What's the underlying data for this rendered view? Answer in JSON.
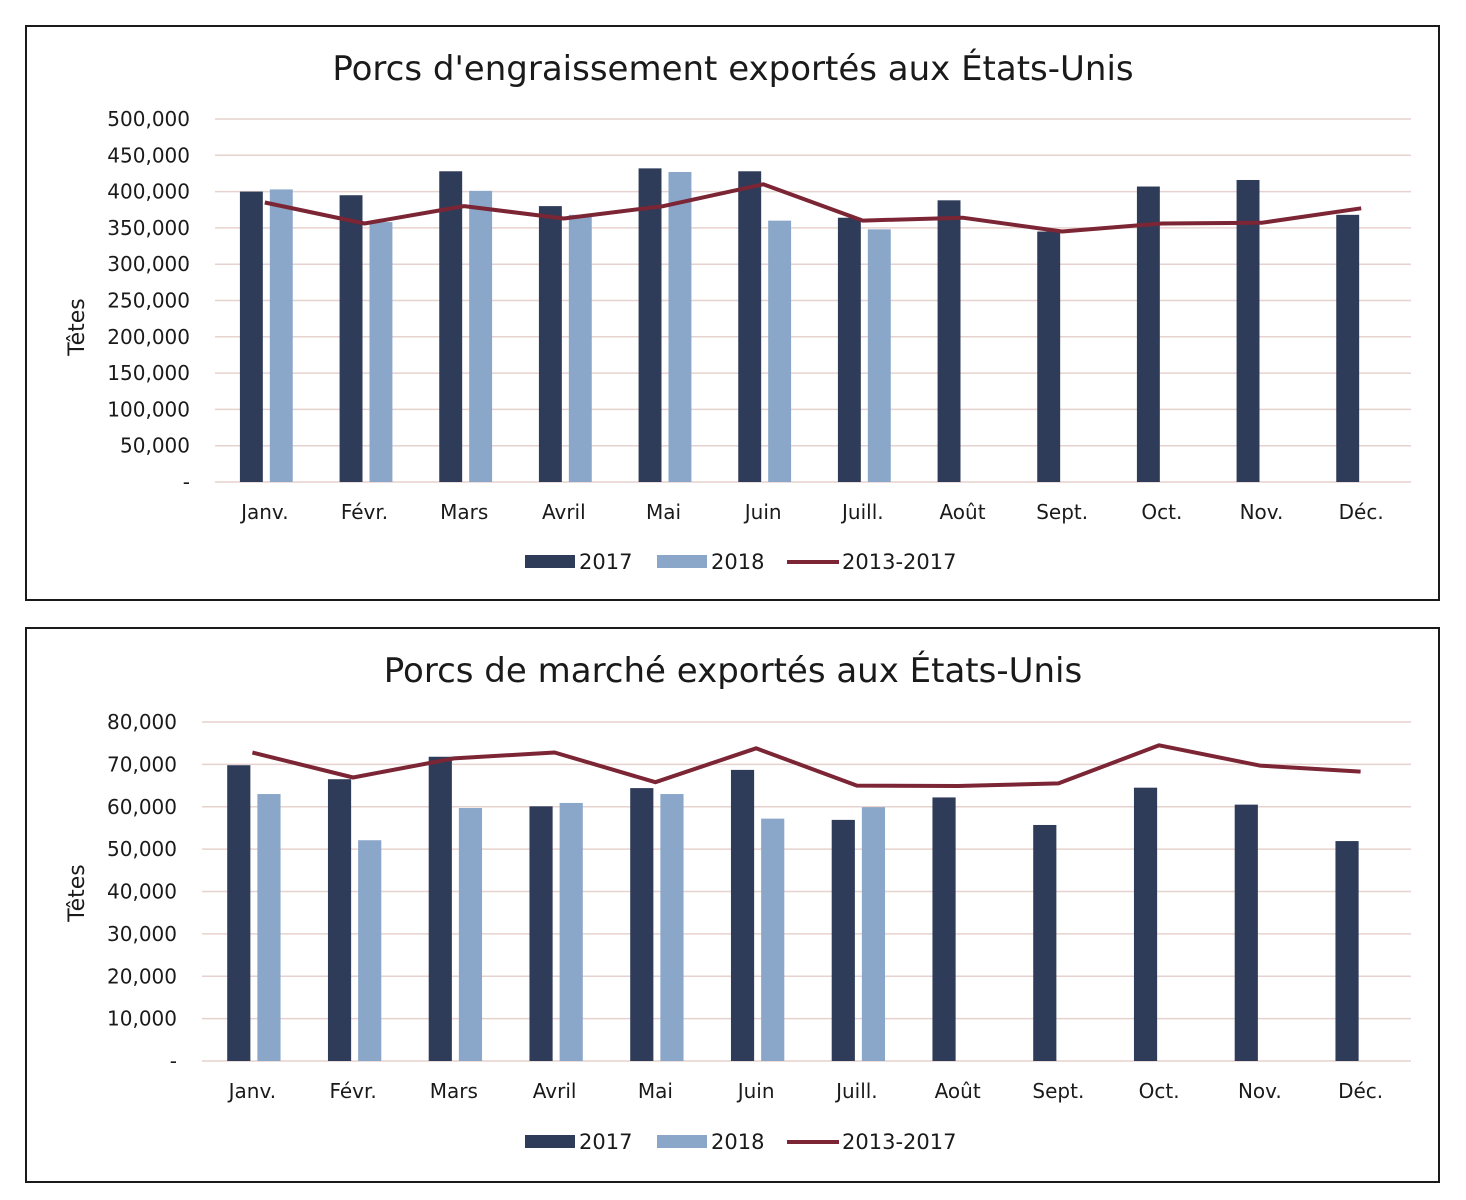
{
  "colors": {
    "s2017": "#2f3c59",
    "s2018": "#8aa7ca",
    "avg": "#7b2535",
    "grid": "#e6d2ce"
  },
  "chart_data": [
    {
      "type": "bar",
      "title": "Porcs d'engraissement exportés aux États-Unis",
      "ylabel": "Têtes",
      "ylim": [
        0,
        500000
      ],
      "yticks": [
        "-",
        "50,000",
        "100,000",
        "150,000",
        "200,000",
        "250,000",
        "300,000",
        "350,000",
        "400,000",
        "450,000",
        "500,000"
      ],
      "categories": [
        "Janv.",
        "Févr.",
        "Mars",
        "Avril",
        "Mai",
        "Juin",
        "Juill.",
        "Août",
        "Sept.",
        "Oct.",
        "Nov.",
        "Déc."
      ],
      "series": [
        {
          "name": "2017",
          "type": "bar",
          "values": [
            400000,
            395000,
            428000,
            380000,
            432000,
            428000,
            364000,
            388000,
            345000,
            407000,
            416000,
            368000
          ]
        },
        {
          "name": "2018",
          "type": "bar",
          "values": [
            403000,
            358000,
            401000,
            368000,
            427000,
            360000,
            348000,
            null,
            null,
            null,
            null,
            null
          ]
        },
        {
          "name": "2013-2017",
          "type": "line",
          "values": [
            385000,
            356000,
            380000,
            363000,
            380000,
            410000,
            360000,
            364000,
            345000,
            356000,
            357000,
            377000
          ]
        }
      ],
      "legend": "bottom-center",
      "grid": true
    },
    {
      "type": "bar",
      "title": "Porcs de marché exportés aux États-Unis",
      "ylabel": "Têtes",
      "ylim": [
        0,
        80000
      ],
      "yticks": [
        "-",
        "10,000",
        "20,000",
        "30,000",
        "40,000",
        "50,000",
        "60,000",
        "70,000",
        "80,000"
      ],
      "categories": [
        "Janv.",
        "Févr.",
        "Mars",
        "Avril",
        "Mai",
        "Juin",
        "Juill.",
        "Août",
        "Sept.",
        "Oct.",
        "Nov.",
        "Déc."
      ],
      "series": [
        {
          "name": "2017",
          "type": "bar",
          "values": [
            69800,
            66500,
            71800,
            60100,
            64400,
            68700,
            56900,
            62200,
            55700,
            64500,
            60500,
            51900
          ]
        },
        {
          "name": "2018",
          "type": "bar",
          "values": [
            63000,
            52100,
            59700,
            60900,
            63000,
            57200,
            59900,
            null,
            null,
            null,
            null,
            null
          ]
        },
        {
          "name": "2013-2017",
          "type": "line",
          "values": [
            72800,
            66900,
            71400,
            72800,
            65800,
            73800,
            65000,
            64900,
            65500,
            74500,
            69700,
            68300
          ]
        }
      ],
      "legend": "bottom-center",
      "grid": true
    }
  ]
}
